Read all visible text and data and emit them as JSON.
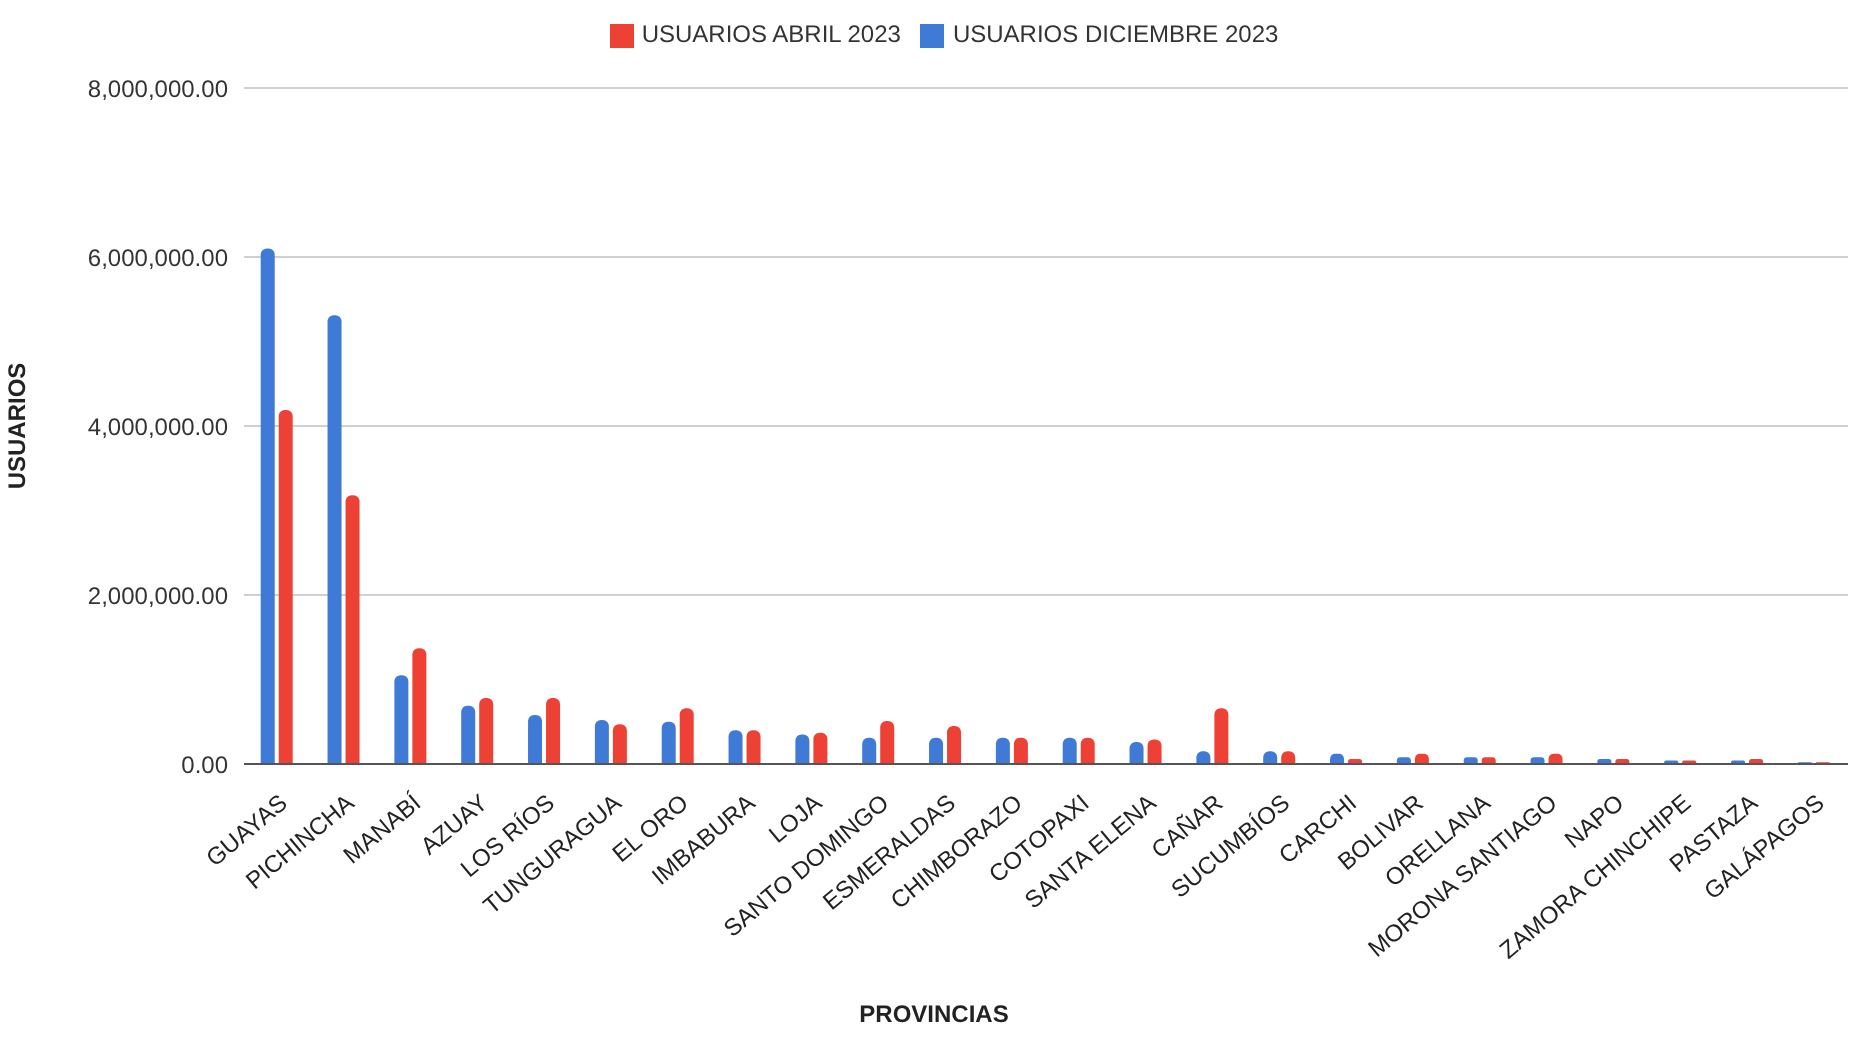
{
  "chart_data": {
    "type": "bar",
    "xlabel": "PROVINCIAS",
    "ylabel": "USUARIOS",
    "categories": [
      "GUAYAS",
      "PICHINCHA",
      "MANABÍ",
      "AZUAY",
      "LOS RÍOS",
      "TUNGURAGUA",
      "EL ORO",
      "IMBABURA",
      "LOJA",
      "SANTO DOMINGO",
      "ESMERALDAS",
      "CHIMBORAZO",
      "COTOPAXI",
      "SANTA ELENA",
      "CAÑAR",
      "SUCUMBÍOS",
      "CARCHI",
      "BOLIVAR",
      "ORELLANA",
      "MORONA SANTIAGO",
      "NAPO",
      "ZAMORA CHINCHIPE",
      "PASTAZA",
      "GALÁPAGOS"
    ],
    "series": [
      {
        "name": "USUARIOS DICIEMBRE 2023",
        "color": "#3f7ad6",
        "values": [
          6100000,
          5310000,
          1050000,
          690000,
          580000,
          520000,
          500000,
          400000,
          350000,
          310000,
          310000,
          310000,
          310000,
          260000,
          150000,
          150000,
          120000,
          80000,
          80000,
          80000,
          60000,
          40000,
          40000,
          20000
        ]
      },
      {
        "name": "USUARIOS ABRIL 2023",
        "color": "#ee4136",
        "values": [
          4190000,
          3180000,
          1370000,
          780000,
          780000,
          470000,
          660000,
          400000,
          370000,
          510000,
          450000,
          310000,
          310000,
          290000,
          660000,
          150000,
          60000,
          120000,
          80000,
          120000,
          60000,
          40000,
          60000,
          20000
        ]
      }
    ],
    "ylim": [
      0,
      8000000
    ],
    "yticks": [
      {
        "value": 0,
        "label": "0.00"
      },
      {
        "value": 2000000,
        "label": "2,000,000.00"
      },
      {
        "value": 4000000,
        "label": "4,000,000.00"
      },
      {
        "value": 6000000,
        "label": "6,000,000.00"
      },
      {
        "value": 8000000,
        "label": "8,000,000.00"
      }
    ],
    "grid": "y",
    "legend": "top"
  }
}
